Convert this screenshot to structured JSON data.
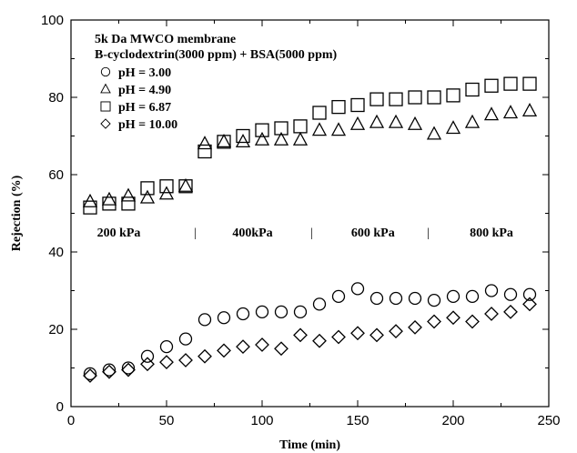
{
  "chart_data": {
    "type": "scatter",
    "title_lines": [
      "5k Da MWCO membrane",
      "B-cyclodextrin(3000 ppm) + BSA(5000 ppm)"
    ],
    "xlabel": "Time (min)",
    "ylabel": "Rejection (%)",
    "xlim": [
      0,
      250
    ],
    "ylim": [
      0,
      100
    ],
    "xticks": [
      0,
      50,
      100,
      150,
      200,
      250
    ],
    "yticks": [
      0,
      20,
      40,
      60,
      80,
      100
    ],
    "grid": false,
    "legend_position": "top-left",
    "series": [
      {
        "name": "pH = 3.00",
        "marker": "circle",
        "points": [
          [
            10,
            8.5
          ],
          [
            20,
            9.5
          ],
          [
            30,
            10
          ],
          [
            40,
            13
          ],
          [
            50,
            15.5
          ],
          [
            60,
            17.5
          ],
          [
            70,
            22.5
          ],
          [
            80,
            23
          ],
          [
            90,
            24
          ],
          [
            100,
            24.5
          ],
          [
            110,
            24.5
          ],
          [
            120,
            24.5
          ],
          [
            130,
            26.5
          ],
          [
            140,
            28.5
          ],
          [
            150,
            30.5
          ],
          [
            160,
            28
          ],
          [
            170,
            28
          ],
          [
            180,
            28
          ],
          [
            190,
            27.5
          ],
          [
            200,
            28.5
          ],
          [
            210,
            28.5
          ],
          [
            220,
            30
          ],
          [
            230,
            29
          ],
          [
            240,
            29
          ]
        ]
      },
      {
        "name": "pH = 4.90",
        "marker": "triangle",
        "points": [
          [
            10,
            53
          ],
          [
            20,
            53.5
          ],
          [
            30,
            54.5
          ],
          [
            40,
            54
          ],
          [
            50,
            55
          ],
          [
            60,
            57
          ],
          [
            70,
            68
          ],
          [
            80,
            68.5
          ],
          [
            90,
            68.5
          ],
          [
            100,
            69
          ],
          [
            110,
            69
          ],
          [
            120,
            69
          ],
          [
            130,
            71.5
          ],
          [
            140,
            71.5
          ],
          [
            150,
            73
          ],
          [
            160,
            73.5
          ],
          [
            170,
            73.5
          ],
          [
            180,
            73
          ],
          [
            190,
            70.5
          ],
          [
            200,
            72
          ],
          [
            210,
            73.5
          ],
          [
            220,
            75.5
          ],
          [
            230,
            76
          ],
          [
            240,
            76.5
          ]
        ]
      },
      {
        "name": "pH = 6.87",
        "marker": "square",
        "points": [
          [
            10,
            51.5
          ],
          [
            20,
            52.5
          ],
          [
            30,
            52.5
          ],
          [
            40,
            56.5
          ],
          [
            50,
            57
          ],
          [
            60,
            57
          ],
          [
            70,
            66
          ],
          [
            80,
            68.5
          ],
          [
            90,
            70
          ],
          [
            100,
            71.5
          ],
          [
            110,
            72
          ],
          [
            120,
            72.5
          ],
          [
            130,
            76
          ],
          [
            140,
            77.5
          ],
          [
            150,
            78
          ],
          [
            160,
            79.5
          ],
          [
            170,
            79.5
          ],
          [
            180,
            80
          ],
          [
            190,
            80
          ],
          [
            200,
            80.5
          ],
          [
            210,
            82
          ],
          [
            220,
            83
          ],
          [
            230,
            83.5
          ],
          [
            240,
            83.5
          ]
        ]
      },
      {
        "name": "pH = 10.00",
        "marker": "diamond",
        "points": [
          [
            10,
            8
          ],
          [
            20,
            9
          ],
          [
            30,
            9.5
          ],
          [
            40,
            11
          ],
          [
            50,
            11.5
          ],
          [
            60,
            12
          ],
          [
            70,
            13
          ],
          [
            80,
            14.5
          ],
          [
            90,
            15.5
          ],
          [
            100,
            16
          ],
          [
            110,
            15
          ],
          [
            120,
            18.5
          ],
          [
            130,
            17
          ],
          [
            140,
            18
          ],
          [
            150,
            19
          ],
          [
            160,
            18.5
          ],
          [
            170,
            19.5
          ],
          [
            180,
            20.5
          ],
          [
            190,
            22
          ],
          [
            200,
            23
          ],
          [
            210,
            22
          ],
          [
            220,
            24
          ],
          [
            230,
            24.5
          ],
          [
            240,
            26.5
          ]
        ]
      }
    ],
    "annotations": {
      "y": 44,
      "labels": [
        {
          "text": "200 kPa",
          "x": 25
        },
        {
          "text": "400kPa",
          "x": 95
        },
        {
          "text": "600 kPa",
          "x": 158
        },
        {
          "text": "800 kPa",
          "x": 220
        }
      ],
      "separators": [
        {
          "text": "|",
          "x": 65
        },
        {
          "text": "|",
          "x": 126
        },
        {
          "text": "|",
          "x": 187
        }
      ]
    }
  }
}
